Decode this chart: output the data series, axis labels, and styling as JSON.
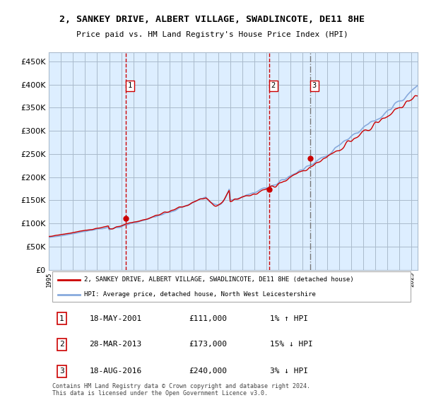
{
  "title_line1": "2, SANKEY DRIVE, ALBERT VILLAGE, SWADLINCOTE, DE11 8HE",
  "title_line2": "Price paid vs. HM Land Registry's House Price Index (HPI)",
  "ytick_values": [
    0,
    50000,
    100000,
    150000,
    200000,
    250000,
    300000,
    350000,
    400000,
    450000
  ],
  "ylim": [
    0,
    470000
  ],
  "xlim_start": 1995.0,
  "xlim_end": 2025.5,
  "xtick_years": [
    1995,
    1996,
    1997,
    1998,
    1999,
    2000,
    2001,
    2002,
    2003,
    2004,
    2005,
    2006,
    2007,
    2008,
    2009,
    2010,
    2011,
    2012,
    2013,
    2014,
    2015,
    2016,
    2017,
    2018,
    2019,
    2020,
    2021,
    2022,
    2023,
    2024,
    2025
  ],
  "sale_dates": [
    2001.38,
    2013.24,
    2016.63
  ],
  "sale_prices": [
    111000,
    173000,
    240000
  ],
  "sale_labels": [
    "1",
    "2",
    "3"
  ],
  "vline_colors": [
    "#cc0000",
    "#cc0000",
    "#888888"
  ],
  "vline_styles": [
    "dashed",
    "dashed",
    "dashdot"
  ],
  "bg_color": "#ddeeff",
  "grid_color": "#aabbcc",
  "red_line_color": "#cc0000",
  "blue_line_color": "#88aadd",
  "legend_line1": "2, SANKEY DRIVE, ALBERT VILLAGE, SWADLINCOTE, DE11 8HE (detached house)",
  "legend_line2": "HPI: Average price, detached house, North West Leicestershire",
  "table_rows": [
    {
      "num": "1",
      "date": "18-MAY-2001",
      "price": "£111,000",
      "hpi": "1% ↑ HPI"
    },
    {
      "num": "2",
      "date": "28-MAR-2013",
      "price": "£173,000",
      "hpi": "15% ↓ HPI"
    },
    {
      "num": "3",
      "date": "18-AUG-2016",
      "price": "£240,000",
      "hpi": "3% ↓ HPI"
    }
  ],
  "footer": "Contains HM Land Registry data © Crown copyright and database right 2024.\nThis data is licensed under the Open Government Licence v3.0."
}
